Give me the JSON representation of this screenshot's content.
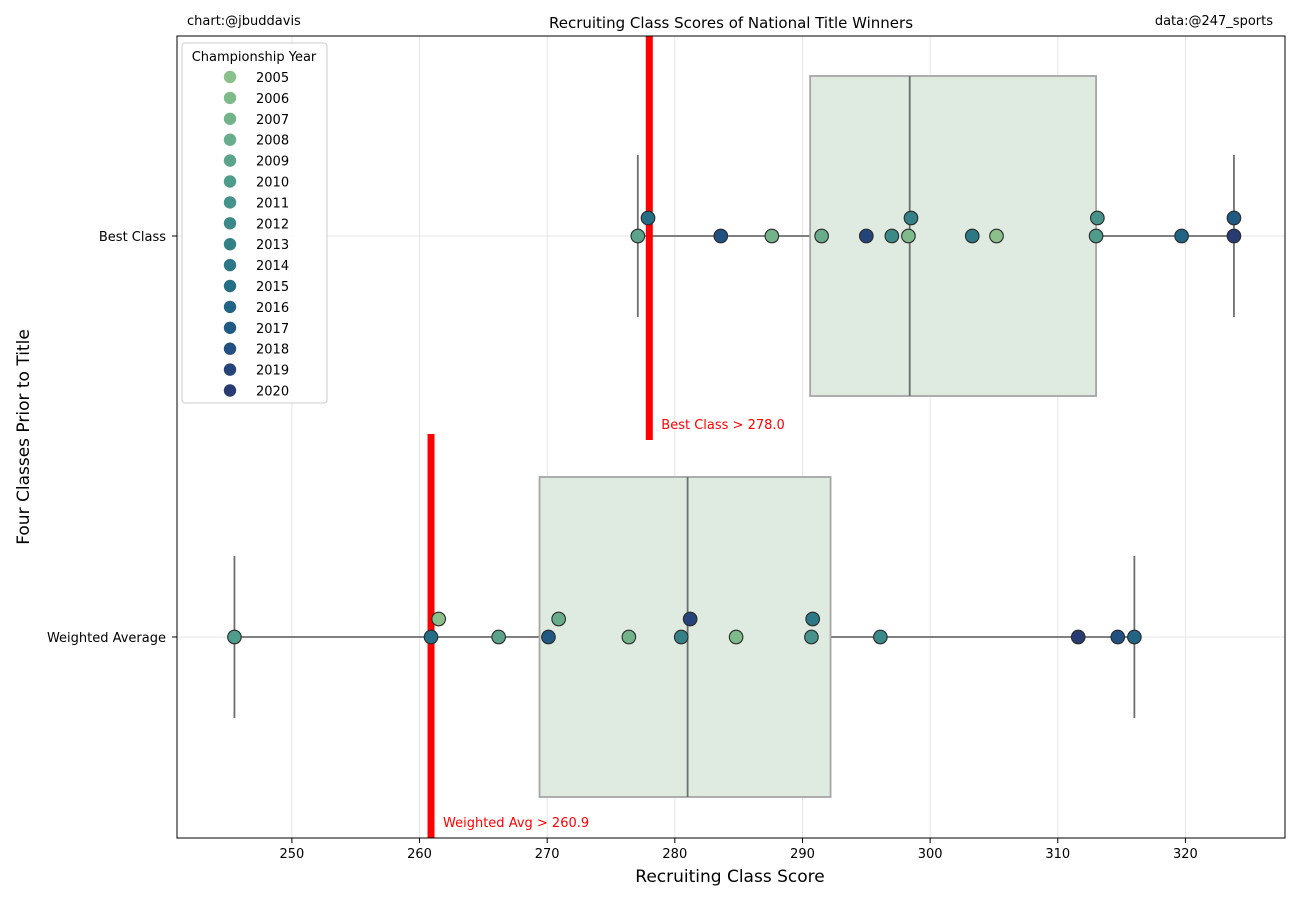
{
  "credit_left": "chart:@jbuddavis",
  "credit_right": "data:@247_sports",
  "chart_data": {
    "type": "box-swarm",
    "title": "Recruiting Class Scores of National Title Winners",
    "xlabel": "Recruiting Class Score",
    "ylabel": "Four Classes Prior to Title",
    "xlim": [
      241.0,
      327.8
    ],
    "xticks": [
      250,
      260,
      270,
      280,
      290,
      300,
      310,
      320
    ],
    "grid": true,
    "legend": {
      "title": "Championship Year",
      "placement": "top-left",
      "entries": [
        "2005",
        "2006",
        "2007",
        "2008",
        "2009",
        "2010",
        "2011",
        "2012",
        "2013",
        "2014",
        "2015",
        "2016",
        "2017",
        "2018",
        "2019",
        "2020"
      ]
    },
    "year_colors": {
      "2005": "#8bbf8c",
      "2006": "#7fba8a",
      "2007": "#73b38a",
      "2008": "#67ac8b",
      "2009": "#5ba48b",
      "2010": "#4f9c8a",
      "2011": "#45938a",
      "2012": "#3b8a89",
      "2013": "#338187",
      "2014": "#2c7886",
      "2015": "#266e85",
      "2016": "#226484",
      "2017": "#205a82",
      "2018": "#225080",
      "2019": "#25457a",
      "2020": "#283b72"
    },
    "box_fill": "#dfebe0",
    "threshold_color": "#ff0000",
    "categories": [
      "Best Class",
      "Weighted Average"
    ],
    "boxes": [
      {
        "category": "Best Class",
        "whisker_low": 277.1,
        "q1": 290.6,
        "median": 298.4,
        "q3": 313.0,
        "whisker_high": 323.8
      },
      {
        "category": "Weighted Average",
        "whisker_low": 245.5,
        "q1": 269.4,
        "median": 281.0,
        "q3": 292.2,
        "whisker_high": 316.0
      }
    ],
    "thresholds": [
      {
        "category": "Best Class",
        "value": 278.0,
        "label": "Best Class > 278.0"
      },
      {
        "category": "Weighted Average",
        "value": 260.9,
        "label": "Weighted Avg > 260.9"
      }
    ],
    "points": [
      {
        "category": "Best Class",
        "x": 277.1,
        "year": "2009",
        "lane": 0
      },
      {
        "category": "Best Class",
        "x": 277.9,
        "year": "2015",
        "lane": 1
      },
      {
        "category": "Best Class",
        "x": 283.6,
        "year": "2018",
        "lane": 0
      },
      {
        "category": "Best Class",
        "x": 287.6,
        "year": "2007",
        "lane": 0
      },
      {
        "category": "Best Class",
        "x": 291.5,
        "year": "2008",
        "lane": 0
      },
      {
        "category": "Best Class",
        "x": 295.0,
        "year": "2019",
        "lane": 0
      },
      {
        "category": "Best Class",
        "x": 297.0,
        "year": "2012",
        "lane": 0
      },
      {
        "category": "Best Class",
        "x": 298.3,
        "year": "2006",
        "lane": 0
      },
      {
        "category": "Best Class",
        "x": 298.5,
        "year": "2013",
        "lane": 1
      },
      {
        "category": "Best Class",
        "x": 303.3,
        "year": "2014",
        "lane": 0
      },
      {
        "category": "Best Class",
        "x": 305.2,
        "year": "2005",
        "lane": 0
      },
      {
        "category": "Best Class",
        "x": 313.0,
        "year": "2010",
        "lane": 0
      },
      {
        "category": "Best Class",
        "x": 313.1,
        "year": "2011",
        "lane": 1
      },
      {
        "category": "Best Class",
        "x": 319.7,
        "year": "2016",
        "lane": 0
      },
      {
        "category": "Best Class",
        "x": 323.8,
        "year": "2020",
        "lane": 0
      },
      {
        "category": "Best Class",
        "x": 323.8,
        "year": "2017",
        "lane": 1
      },
      {
        "category": "Weighted Average",
        "x": 245.5,
        "year": "2010",
        "lane": 0
      },
      {
        "category": "Weighted Average",
        "x": 260.9,
        "year": "2015",
        "lane": 0
      },
      {
        "category": "Weighted Average",
        "x": 261.5,
        "year": "2005",
        "lane": 1
      },
      {
        "category": "Weighted Average",
        "x": 266.2,
        "year": "2009",
        "lane": 0
      },
      {
        "category": "Weighted Average",
        "x": 270.1,
        "year": "2017",
        "lane": 0
      },
      {
        "category": "Weighted Average",
        "x": 270.9,
        "year": "2008",
        "lane": 1
      },
      {
        "category": "Weighted Average",
        "x": 276.4,
        "year": "2007",
        "lane": 0
      },
      {
        "category": "Weighted Average",
        "x": 280.5,
        "year": "2013",
        "lane": 0
      },
      {
        "category": "Weighted Average",
        "x": 281.2,
        "year": "2019",
        "lane": 1
      },
      {
        "category": "Weighted Average",
        "x": 284.8,
        "year": "2006",
        "lane": 0
      },
      {
        "category": "Weighted Average",
        "x": 290.7,
        "year": "2011",
        "lane": 0
      },
      {
        "category": "Weighted Average",
        "x": 290.8,
        "year": "2014",
        "lane": 1
      },
      {
        "category": "Weighted Average",
        "x": 296.1,
        "year": "2012",
        "lane": 0
      },
      {
        "category": "Weighted Average",
        "x": 311.6,
        "year": "2020",
        "lane": 0
      },
      {
        "category": "Weighted Average",
        "x": 314.7,
        "year": "2018",
        "lane": 0
      },
      {
        "category": "Weighted Average",
        "x": 316.0,
        "year": "2016",
        "lane": 0
      }
    ]
  }
}
